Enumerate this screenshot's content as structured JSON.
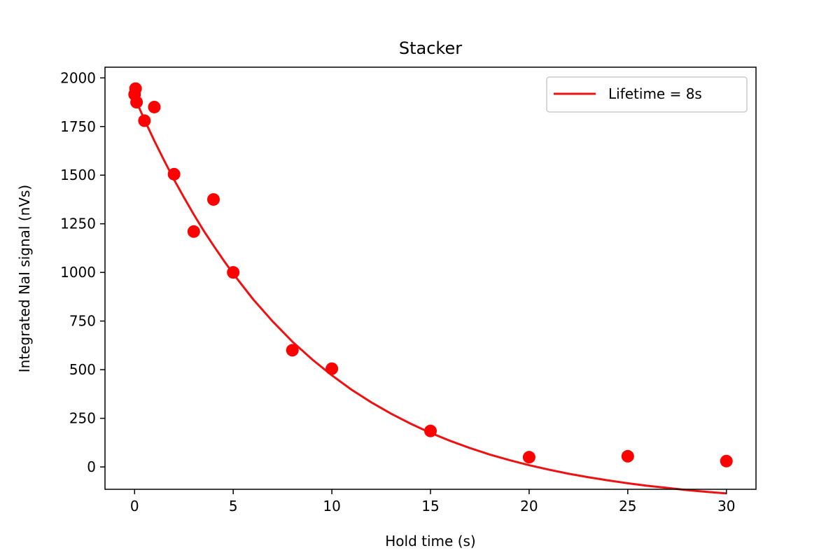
{
  "chart_data": {
    "type": "scatter",
    "title": "Stacker",
    "xlabel": "Hold time (s)",
    "ylabel": "Integrated NaI signal (nVs)",
    "xlim": [
      -1.5,
      31.5
    ],
    "ylim": [
      -115,
      2055
    ],
    "xticks": [
      0,
      5,
      10,
      15,
      20,
      25,
      30
    ],
    "yticks": [
      0,
      250,
      500,
      750,
      1000,
      1250,
      1500,
      1750,
      2000
    ],
    "grid": false,
    "legend_position": "top-right",
    "colors": {
      "points": "#ff0000",
      "fit": "#ee1111"
    },
    "series": [
      {
        "kind": "points",
        "x": [
          0,
          0.05,
          0.1,
          0.5,
          1,
          2,
          3,
          4,
          5,
          8,
          10,
          15,
          20,
          25,
          30
        ],
        "y": [
          1915,
          1945,
          1875,
          1780,
          1850,
          1505,
          1210,
          1375,
          1000,
          600,
          505,
          185,
          50,
          55,
          30
        ]
      },
      {
        "kind": "line",
        "name": "Lifetime = 8s",
        "x": [
          0,
          0.5,
          1,
          1.5,
          2,
          2.5,
          3,
          3.5,
          4,
          4.5,
          5,
          6,
          7,
          8,
          9,
          10,
          11,
          12,
          13,
          14,
          15,
          16,
          17,
          18,
          19,
          20,
          21,
          22,
          23,
          24,
          25,
          26,
          27,
          28,
          29,
          30
        ],
        "y": [
          1900,
          1785,
          1677,
          1575,
          1477,
          1386,
          1298,
          1215,
          1138,
          1064,
          993,
          863,
          748,
          644,
          553,
          471,
          397,
          332,
          274,
          222,
          175,
          134,
          97,
          64,
          35,
          9,
          -14,
          -35,
          -53,
          -69,
          -84,
          -97,
          -108,
          -119,
          -128,
          -136
        ]
      }
    ]
  }
}
